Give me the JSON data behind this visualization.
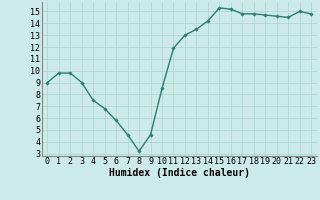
{
  "x": [
    0,
    1,
    2,
    3,
    4,
    5,
    6,
    7,
    8,
    9,
    10,
    11,
    12,
    13,
    14,
    15,
    16,
    17,
    18,
    19,
    20,
    21,
    22,
    23
  ],
  "y": [
    9.0,
    9.8,
    9.8,
    9.0,
    7.5,
    6.8,
    5.8,
    4.6,
    3.2,
    4.6,
    8.5,
    11.9,
    13.0,
    13.5,
    14.2,
    15.3,
    15.2,
    14.8,
    14.8,
    14.7,
    14.6,
    14.5,
    15.0,
    14.8
  ],
  "line_color": "#2e7d6e",
  "marker": "D",
  "marker_size": 1.8,
  "bg_color": "#cceae8",
  "grid_color": "#aad4cc",
  "xlabel": "Humidex (Indice chaleur)",
  "xlim": [
    -0.5,
    23.5
  ],
  "ylim": [
    2.8,
    15.8
  ],
  "yticks": [
    3,
    4,
    5,
    6,
    7,
    8,
    9,
    10,
    11,
    12,
    13,
    14,
    15
  ],
  "xticks": [
    0,
    1,
    2,
    3,
    4,
    5,
    6,
    7,
    8,
    9,
    10,
    11,
    12,
    13,
    14,
    15,
    16,
    17,
    18,
    19,
    20,
    21,
    22,
    23
  ],
  "xlabel_fontsize": 7,
  "tick_fontsize": 6,
  "line_width": 1.0
}
